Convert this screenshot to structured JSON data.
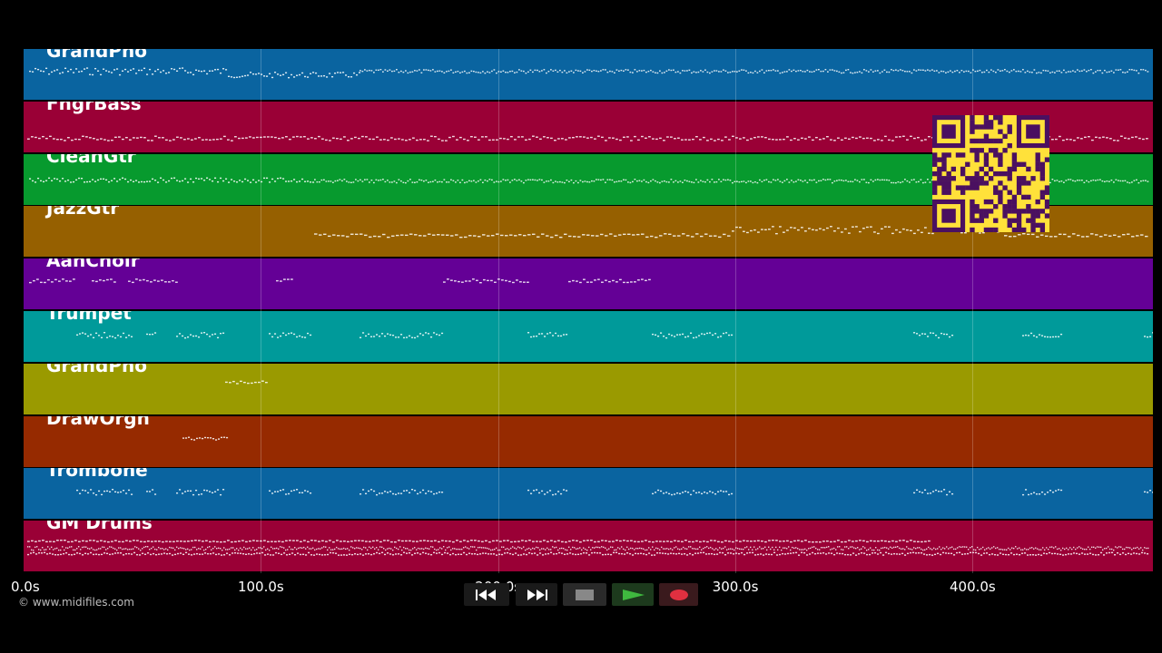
{
  "tracks": [
    {
      "name": "GrandPno",
      "color": "#0a64a0",
      "pattern": "dense"
    },
    {
      "name": "FngrBass",
      "color": "#9a0036",
      "pattern": "bass"
    },
    {
      "name": "CleanGtr",
      "color": "#079a2e",
      "pattern": "dense"
    },
    {
      "name": "JazzGtr",
      "color": "#966000",
      "pattern": "jazz"
    },
    {
      "name": "AahChoir",
      "color": "#640096",
      "pattern": "sparse"
    },
    {
      "name": "Trumpet",
      "color": "#009a9a",
      "pattern": "brass"
    },
    {
      "name": "GrandPno",
      "color": "#9a9a00",
      "pattern": "tiny"
    },
    {
      "name": "DrawOrgn",
      "color": "#962a00",
      "pattern": "organ"
    },
    {
      "name": "Trombone",
      "color": "#0a64a0",
      "pattern": "brass"
    },
    {
      "name": "GM Drums",
      "color": "#9a0036",
      "pattern": "drums"
    }
  ],
  "axis": {
    "max_seconds": 476,
    "ticks": [
      {
        "value": 0,
        "label": "0.0s"
      },
      {
        "value": 100,
        "label": "100.0s"
      },
      {
        "value": 200,
        "label": "200.0s"
      },
      {
        "value": 300,
        "label": "300.0s"
      },
      {
        "value": 400,
        "label": "400.0s"
      }
    ]
  },
  "credit": "© www.midifiles.com",
  "transport": {
    "rewind": {
      "icon": "rewind-icon"
    },
    "forward": {
      "icon": "fast-forward-icon"
    },
    "stop": {
      "icon": "stop-icon"
    },
    "play": {
      "icon": "play-icon",
      "color": "#3fb83f"
    },
    "record": {
      "icon": "record-icon",
      "color": "#e03040"
    }
  },
  "qr": {
    "color": "#ffe13a",
    "ink": "#4a1060"
  }
}
